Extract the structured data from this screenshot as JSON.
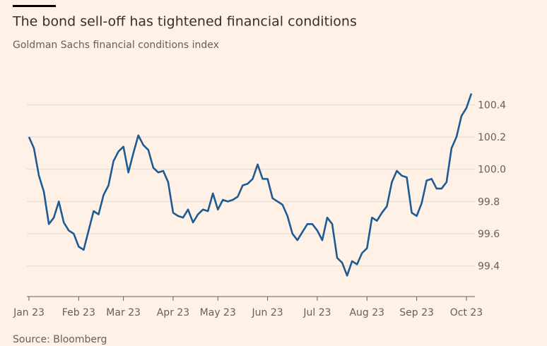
{
  "chart_data": {
    "type": "line",
    "title": "The bond sell-off has tightened financial conditions",
    "subtitle": "Goldman Sachs financial conditions index",
    "source": "Source: Bloomberg",
    "categories": [
      "Jan 23",
      null,
      null,
      null,
      null,
      null,
      null,
      null,
      null,
      null,
      "Feb 23",
      null,
      null,
      null,
      null,
      null,
      null,
      null,
      null,
      "Mar 23",
      null,
      null,
      null,
      null,
      null,
      null,
      null,
      null,
      null,
      "Apr 23",
      null,
      null,
      null,
      null,
      null,
      null,
      null,
      null,
      "May 23",
      null,
      null,
      null,
      null,
      null,
      null,
      null,
      null,
      null,
      "Jun 23",
      null,
      null,
      null,
      null,
      null,
      null,
      null,
      null,
      null,
      "Jul 23",
      null,
      null,
      null,
      null,
      null,
      null,
      null,
      null,
      null,
      "Aug 23",
      null,
      null,
      null,
      null,
      null,
      null,
      null,
      null,
      null,
      "Sep 23",
      null,
      null,
      null,
      null,
      null,
      null,
      null,
      null,
      null,
      "Oct 23",
      null
    ],
    "values": [
      100.2,
      100.13,
      99.96,
      99.86,
      99.66,
      99.7,
      99.8,
      99.67,
      99.62,
      99.6,
      99.52,
      99.5,
      99.62,
      99.74,
      99.72,
      99.84,
      99.9,
      100.05,
      100.11,
      100.14,
      99.98,
      100.1,
      100.21,
      100.15,
      100.12,
      100.01,
      99.98,
      99.99,
      99.92,
      99.73,
      99.71,
      99.7,
      99.75,
      99.67,
      99.72,
      99.75,
      99.74,
      99.85,
      99.75,
      99.81,
      99.8,
      99.81,
      99.83,
      99.9,
      99.91,
      99.94,
      100.03,
      99.94,
      99.94,
      99.82,
      99.8,
      99.78,
      99.71,
      99.6,
      99.56,
      99.61,
      99.66,
      99.66,
      99.62,
      99.56,
      99.7,
      99.66,
      99.45,
      99.42,
      99.34,
      99.43,
      99.41,
      99.48,
      99.51,
      99.7,
      99.68,
      99.73,
      99.77,
      99.92,
      99.99,
      99.96,
      99.95,
      99.73,
      99.71,
      99.79,
      99.93,
      99.94,
      99.88,
      99.88,
      99.92,
      100.13,
      100.2,
      100.33,
      100.38,
      100.47
    ],
    "color": "#1e5a94",
    "ylim": [
      99.21,
      100.59
    ],
    "yticks": [
      99.4,
      99.6,
      99.8,
      {
        "value": 100,
        "label": "100.0"
      },
      100.2,
      100.4
    ],
    "grid": true
  }
}
